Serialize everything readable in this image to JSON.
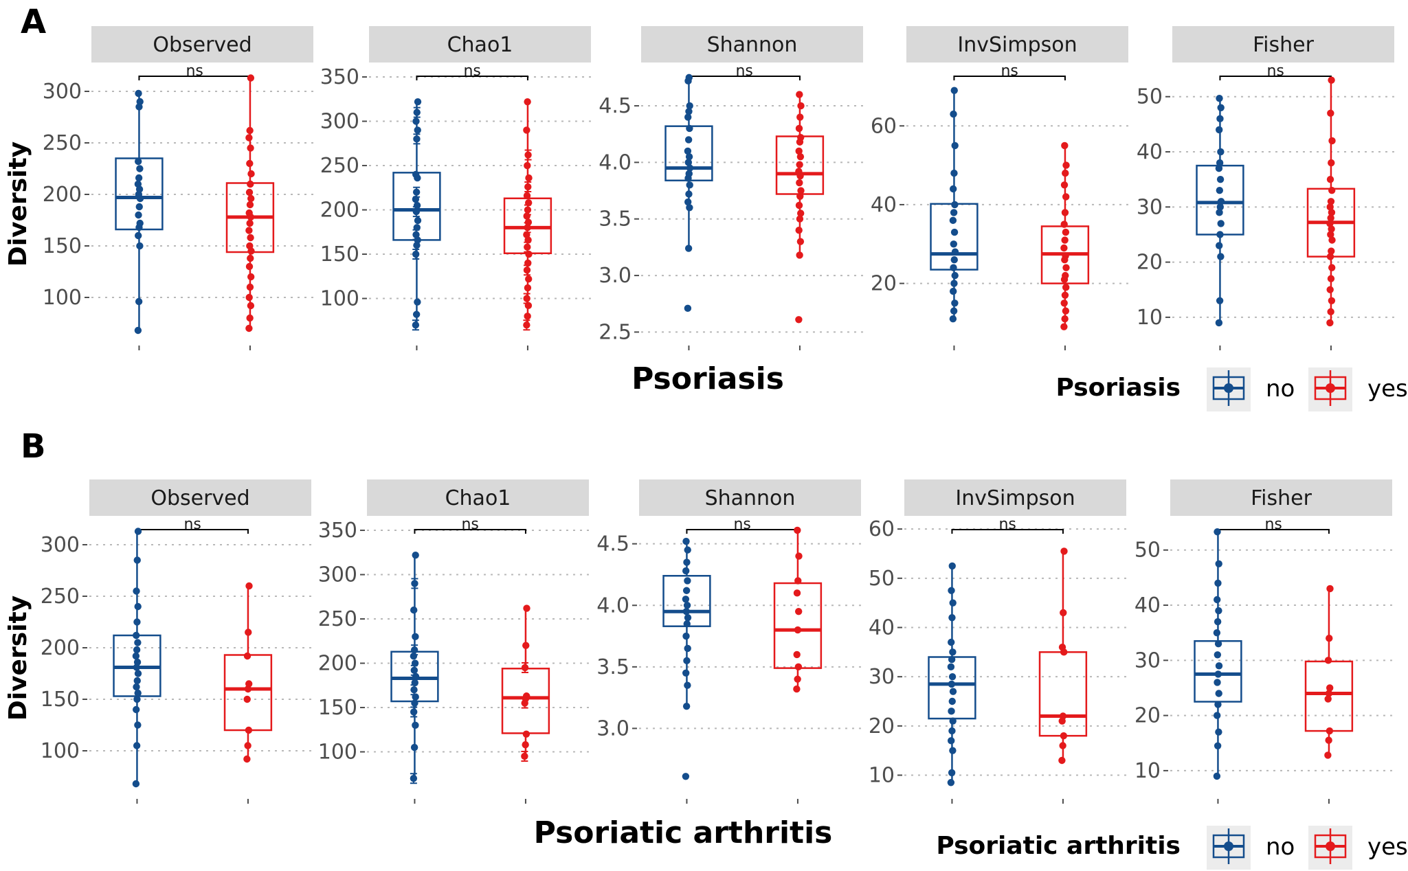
{
  "colors": {
    "no": "#144d8c",
    "yes": "#e41a1c",
    "strip": "#d9d9d9",
    "grid": "#b8b8b8"
  },
  "panels": [
    {
      "letter": "A",
      "ylabel": "Diversity",
      "xlabel": "Psoriasis",
      "legend": {
        "title": "Psoriasis",
        "no_label": "no",
        "yes_label": "yes"
      },
      "chart_data": [
        {
          "type": "box",
          "title": "Observed",
          "ylim": [
            62,
            320
          ],
          "ticks": [
            100,
            150,
            200,
            250,
            300
          ],
          "significance": "ns",
          "errorbars": false,
          "groups": [
            {
              "name": "no",
              "q1": 166,
              "median": 197,
              "q3": 235,
              "whisker_low": 68,
              "whisker_high": 298,
              "points": [
                68,
                96,
                150,
                160,
                168,
                172,
                180,
                188,
                196,
                200,
                205,
                210,
                216,
                225,
                232,
                285,
                290,
                298
              ]
            },
            {
              "name": "yes",
              "q1": 144,
              "median": 178,
              "q3": 211,
              "whisker_low": 70,
              "whisker_high": 313,
              "points": [
                70,
                80,
                92,
                100,
                110,
                120,
                130,
                138,
                145,
                150,
                158,
                165,
                172,
                178,
                182,
                190,
                196,
                202,
                210,
                220,
                230,
                245,
                255,
                262,
                313
              ]
            }
          ]
        },
        {
          "type": "box",
          "title": "Chao1",
          "ylim": [
            57,
            357
          ],
          "ticks": [
            100,
            150,
            200,
            250,
            300,
            350
          ],
          "significance": "ns",
          "errorbars": true,
          "groups": [
            {
              "name": "no",
              "q1": 166,
              "median": 200,
              "q3": 242,
              "whisker_low": 70,
              "whisker_high": 322,
              "points": [
                70,
                82,
                96,
                150,
                160,
                166,
                172,
                180,
                188,
                198,
                205,
                212,
                220,
                236,
                240,
                280,
                290,
                300,
                310,
                322
              ]
            },
            {
              "name": "yes",
              "q1": 151,
              "median": 180,
              "q3": 213,
              "whisker_low": 70,
              "whisker_high": 322,
              "points": [
                70,
                80,
                92,
                100,
                112,
                122,
                132,
                140,
                150,
                158,
                166,
                172,
                180,
                186,
                193,
                200,
                208,
                216,
                226,
                236,
                250,
                262,
                290,
                322
              ]
            }
          ]
        },
        {
          "type": "box",
          "title": "Shannon",
          "ylim": [
            2.46,
            4.81
          ],
          "ticks": [
            2.5,
            3.0,
            3.5,
            4.0,
            4.5
          ],
          "tick_labels": [
            "2.5",
            "3.0",
            "3.5",
            "4.0",
            "4.5"
          ],
          "significance": "ns",
          "errorbars": false,
          "groups": [
            {
              "name": "no",
              "q1": 3.84,
              "median": 3.95,
              "q3": 4.32,
              "whisker_low": 3.24,
              "whisker_high": 4.75,
              "points": [
                2.71,
                3.24,
                3.6,
                3.65,
                3.72,
                3.8,
                3.86,
                3.9,
                3.95,
                4.0,
                4.05,
                4.1,
                4.2,
                4.3,
                4.4,
                4.45,
                4.5,
                4.72,
                4.75
              ]
            },
            {
              "name": "yes",
              "q1": 3.72,
              "median": 3.9,
              "q3": 4.23,
              "whisker_low": 3.18,
              "whisker_high": 4.6,
              "points": [
                2.61,
                3.18,
                3.3,
                3.4,
                3.5,
                3.55,
                3.62,
                3.7,
                3.75,
                3.82,
                3.88,
                3.92,
                3.98,
                4.05,
                4.1,
                4.18,
                4.22,
                4.3,
                4.4,
                4.5,
                4.6
              ]
            }
          ]
        },
        {
          "type": "box",
          "title": "InvSimpson",
          "ylim": [
            6.5,
            74
          ],
          "ticks": [
            20,
            40,
            60
          ],
          "significance": "ns",
          "errorbars": false,
          "groups": [
            {
              "name": "no",
              "q1": 23.5,
              "median": 27.5,
              "q3": 40.2,
              "whisker_low": 11,
              "whisker_high": 69,
              "points": [
                11,
                13,
                15,
                18,
                20,
                22,
                24,
                26,
                28,
                30,
                33,
                36,
                38,
                40,
                44,
                48,
                55,
                63,
                69
              ]
            },
            {
              "name": "yes",
              "q1": 20,
              "median": 27.5,
              "q3": 34.5,
              "whisker_low": 9,
              "whisker_high": 55,
              "points": [
                9,
                11,
                13,
                15,
                17,
                19,
                21,
                22,
                24,
                26,
                27,
                29,
                31,
                33,
                35,
                38,
                42,
                45,
                48,
                50,
                55
              ]
            }
          ]
        },
        {
          "type": "box",
          "title": "Fisher",
          "ylim": [
            6.5,
            54.7
          ],
          "ticks": [
            10,
            20,
            30,
            40,
            50
          ],
          "significance": "ns",
          "errorbars": false,
          "groups": [
            {
              "name": "no",
              "q1": 25,
              "median": 30.8,
              "q3": 37.5,
              "whisker_low": 9,
              "whisker_high": 49.7,
              "points": [
                9,
                13,
                21,
                23,
                25,
                27,
                29,
                30,
                31,
                33,
                35,
                37,
                38,
                40,
                44,
                46,
                48,
                49.7
              ]
            },
            {
              "name": "yes",
              "q1": 21,
              "median": 27.2,
              "q3": 33.3,
              "whisker_low": 9,
              "whisker_high": 53,
              "points": [
                9,
                11,
                13,
                15,
                17,
                19,
                21,
                22,
                24,
                25,
                26,
                27,
                28,
                29,
                30,
                31,
                33,
                35,
                38,
                42,
                47,
                53
              ]
            }
          ]
        }
      ]
    },
    {
      "letter": "B",
      "ylabel": "Diversity",
      "xlabel": "Psoriatic arthritis",
      "legend": {
        "title": "Psoriatic arthritis",
        "no_label": "no",
        "yes_label": "yes"
      },
      "chart_data": [
        {
          "type": "box",
          "title": "Observed",
          "ylim": [
            62,
            320
          ],
          "ticks": [
            100,
            150,
            200,
            250,
            300
          ],
          "significance": "ns",
          "errorbars": false,
          "groups": [
            {
              "name": "no",
              "q1": 153,
              "median": 181,
              "q3": 212,
              "whisker_low": 68,
              "whisker_high": 313,
              "points": [
                68,
                105,
                125,
                140,
                150,
                156,
                162,
                168,
                175,
                181,
                186,
                192,
                198,
                205,
                212,
                225,
                240,
                255,
                285,
                313
              ]
            },
            {
              "name": "yes",
              "q1": 120,
              "median": 160,
              "q3": 193,
              "whisker_low": 92,
              "whisker_high": 260,
              "points": [
                92,
                105,
                120,
                150,
                160,
                165,
                192,
                215,
                260
              ]
            }
          ]
        },
        {
          "type": "box",
          "title": "Chao1",
          "ylim": [
            57,
            357
          ],
          "ticks": [
            100,
            150,
            200,
            250,
            300,
            350
          ],
          "significance": "ns",
          "errorbars": true,
          "groups": [
            {
              "name": "no",
              "q1": 157,
              "median": 183,
              "q3": 213,
              "whisker_low": 70,
              "whisker_high": 322,
              "points": [
                70,
                105,
                130,
                145,
                155,
                162,
                170,
                178,
                185,
                192,
                200,
                208,
                215,
                230,
                260,
                290,
                322
              ]
            },
            {
              "name": "yes",
              "q1": 121,
              "median": 161,
              "q3": 194,
              "whisker_low": 95,
              "whisker_high": 262,
              "points": [
                95,
                108,
                120,
                155,
                160,
                163,
                195,
                220,
                262
              ]
            }
          ]
        },
        {
          "type": "box",
          "title": "Shannon",
          "ylim": [
            2.5,
            4.66
          ],
          "ticks": [
            3.0,
            3.5,
            4.0,
            4.5
          ],
          "tick_labels": [
            "3.0",
            "3.5",
            "4.0",
            "4.5"
          ],
          "significance": "ns",
          "errorbars": false,
          "groups": [
            {
              "name": "no",
              "q1": 3.83,
              "median": 3.95,
              "q3": 4.24,
              "whisker_low": 3.18,
              "whisker_high": 4.52,
              "points": [
                2.61,
                3.18,
                3.35,
                3.45,
                3.55,
                3.65,
                3.75,
                3.85,
                3.9,
                3.95,
                4.0,
                4.05,
                4.12,
                4.2,
                4.28,
                4.35,
                4.45,
                4.52
              ]
            },
            {
              "name": "yes",
              "q1": 3.49,
              "median": 3.8,
              "q3": 4.18,
              "whisker_low": 3.32,
              "whisker_high": 4.61,
              "points": [
                3.32,
                3.4,
                3.5,
                3.6,
                3.8,
                3.95,
                4.1,
                4.2,
                4.4,
                4.61
              ]
            }
          ]
        },
        {
          "type": "box",
          "title": "InvSimpson",
          "ylim": [
            7,
            61
          ],
          "ticks": [
            10,
            20,
            30,
            40,
            50,
            60
          ],
          "significance": "ns",
          "errorbars": false,
          "groups": [
            {
              "name": "no",
              "q1": 21.5,
              "median": 28.5,
              "q3": 34,
              "whisker_low": 8.5,
              "whisker_high": 52.5,
              "points": [
                8.5,
                10.5,
                15,
                17,
                19,
                21,
                23,
                25,
                27,
                28.5,
                30,
                32,
                33.5,
                35,
                37,
                42,
                45,
                47.5,
                52.5
              ]
            },
            {
              "name": "yes",
              "q1": 18,
              "median": 22,
              "q3": 35,
              "whisker_low": 13,
              "whisker_high": 55.5,
              "points": [
                13,
                16,
                18,
                21,
                22,
                35,
                36,
                43,
                55.5
              ]
            }
          ]
        },
        {
          "type": "box",
          "title": "Fisher",
          "ylim": [
            6.5,
            54.7
          ],
          "ticks": [
            10,
            20,
            30,
            40,
            50
          ],
          "significance": "ns",
          "errorbars": false,
          "groups": [
            {
              "name": "no",
              "q1": 22.5,
              "median": 27.5,
              "q3": 33.5,
              "whisker_low": 9,
              "whisker_high": 53.3,
              "points": [
                9,
                14.5,
                17,
                20,
                22,
                24,
                26,
                27.5,
                29,
                31,
                33,
                35,
                37,
                39,
                41,
                44,
                47.5,
                53.3
              ]
            },
            {
              "name": "yes",
              "q1": 17.2,
              "median": 24,
              "q3": 29.8,
              "whisker_low": 12.8,
              "whisker_high": 43,
              "points": [
                12.8,
                15.5,
                17.2,
                23,
                24,
                25,
                30,
                34,
                43
              ]
            }
          ]
        }
      ]
    }
  ]
}
